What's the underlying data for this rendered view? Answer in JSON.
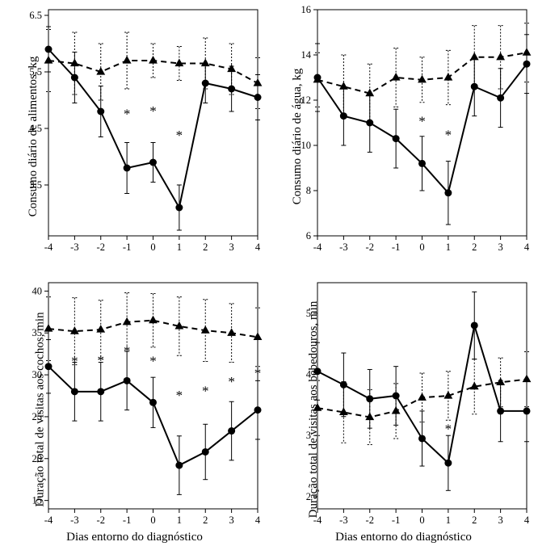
{
  "global": {
    "background_color": "#ffffff",
    "axis_color": "#000000",
    "font_family": "Times New Roman, serif",
    "tick_fontsize": 12.5,
    "label_fontsize": 15,
    "xlabel": "Dias entorno do diagnóstico",
    "x_categories": [
      -4,
      -3,
      -2,
      -1,
      0,
      1,
      2,
      3,
      4
    ],
    "series": {
      "treatment": {
        "marker": "circle",
        "line_style": "solid",
        "line_width": 2,
        "color": "#000000",
        "marker_size": 5
      },
      "control": {
        "marker": "triangle",
        "line_style": "dashed",
        "line_width": 2,
        "color": "#000000",
        "marker_size": 6
      }
    },
    "errorbar": {
      "cap_width": 6,
      "line_width": 1
    }
  },
  "panels": [
    {
      "id": "food",
      "ylabel": "Consumo diário de alimentos, kg",
      "ylim": [
        2.6,
        6.6
      ],
      "yticks": [
        3.5,
        4.5,
        5.5,
        6.5
      ],
      "circle": {
        "y": [
          5.9,
          5.4,
          4.8,
          3.8,
          3.9,
          3.1,
          5.3,
          5.2,
          5.05
        ],
        "err": [
          0.4,
          0.45,
          0.45,
          0.45,
          0.35,
          0.4,
          0.35,
          0.4,
          0.4
        ]
      },
      "triangle": {
        "y": [
          5.7,
          5.65,
          5.5,
          5.7,
          5.7,
          5.65,
          5.65,
          5.55,
          5.3
        ],
        "err": [
          0.55,
          0.55,
          0.5,
          0.5,
          0.3,
          0.3,
          0.45,
          0.45,
          0.45
        ]
      },
      "sig_x": [
        -1,
        0,
        1
      ]
    },
    {
      "id": "water",
      "ylabel": "Consumo diário de água, kg",
      "ylim": [
        6,
        16
      ],
      "yticks": [
        6,
        8,
        10,
        12,
        14,
        16
      ],
      "circle": {
        "y": [
          13.0,
          11.3,
          11.0,
          10.3,
          9.2,
          7.9,
          12.6,
          12.1,
          13.6
        ],
        "err": [
          1.5,
          1.3,
          1.3,
          1.3,
          1.2,
          1.4,
          1.3,
          1.3,
          1.3
        ]
      },
      "triangle": {
        "y": [
          12.9,
          12.6,
          12.3,
          13.0,
          12.9,
          13.0,
          13.9,
          13.9,
          14.1
        ],
        "err": [
          1.2,
          1.4,
          1.3,
          1.3,
          1.0,
          1.2,
          1.4,
          1.4,
          1.3
        ]
      },
      "sig_x": [
        0,
        1
      ]
    },
    {
      "id": "feeder",
      "ylabel": "Duração total de visitas aos cochos, min",
      "ylim": [
        14,
        41
      ],
      "yticks": [
        15,
        20,
        25,
        30,
        35,
        40
      ],
      "circle": {
        "y": [
          31.0,
          28.0,
          28.0,
          29.3,
          26.7,
          19.2,
          20.8,
          23.3,
          25.8
        ],
        "err": [
          3.2,
          3.5,
          3.5,
          3.5,
          3.0,
          3.5,
          3.3,
          3.5,
          3.5
        ]
      },
      "triangle": {
        "y": [
          35.5,
          35.2,
          35.4,
          36.3,
          36.5,
          35.8,
          35.3,
          35.0,
          34.5
        ],
        "err": [
          3.8,
          4.0,
          3.5,
          3.5,
          3.2,
          3.5,
          3.7,
          3.5,
          3.5
        ]
      },
      "sig_x": [
        -3,
        -2,
        -1,
        0,
        1,
        2,
        3,
        4
      ]
    },
    {
      "id": "drinker",
      "ylabel": "Duração total de visitas aos bebedouros, min",
      "ylim": [
        1.8,
        5.5
      ],
      "yticks": [
        2,
        3,
        4,
        5
      ],
      "circle": {
        "y": [
          4.05,
          3.83,
          3.6,
          3.65,
          2.95,
          2.55,
          4.8,
          3.4,
          3.4
        ],
        "err": [
          0.47,
          0.52,
          0.48,
          0.48,
          0.45,
          0.45,
          0.55,
          0.5,
          0.5
        ]
      },
      "triangle": {
        "y": [
          3.45,
          3.38,
          3.3,
          3.4,
          3.62,
          3.65,
          3.8,
          3.87,
          3.92
        ],
        "err": [
          0.45,
          0.5,
          0.45,
          0.45,
          0.4,
          0.4,
          0.45,
          0.4,
          0.45
        ]
      },
      "sig_x": [
        1
      ]
    }
  ]
}
